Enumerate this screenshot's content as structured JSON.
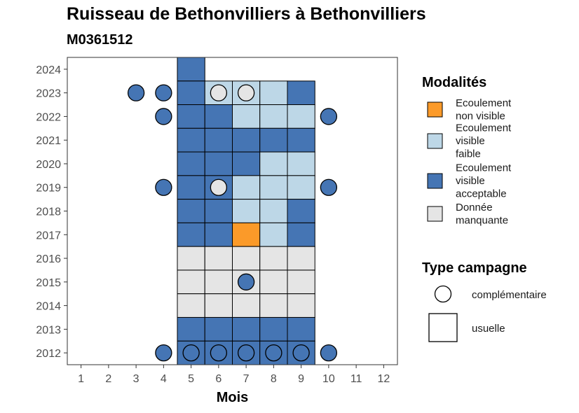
{
  "header": {
    "title": "Ruisseau de Bethonvilliers à Bethonvilliers",
    "subtitle": "M0361512"
  },
  "chart_data": {
    "type": "heatmap",
    "xlabel": "Mois",
    "ylabel": "",
    "x_ticks": [
      1,
      2,
      3,
      4,
      5,
      6,
      7,
      8,
      9,
      10,
      11,
      12
    ],
    "y_ticks": [
      2012,
      2013,
      2014,
      2015,
      2016,
      2017,
      2018,
      2019,
      2020,
      2021,
      2022,
      2023,
      2024
    ],
    "xlim": [
      0.5,
      12.5
    ],
    "ylim": [
      2011.5,
      2024.5
    ],
    "grid": false,
    "legend_position": "right",
    "colors": {
      "ecoulement_non_visible": "#fb9a29",
      "ecoulement_visible_faible": "#bdd7e7",
      "ecoulement_visible_acceptable": "#4575b4",
      "donnee_manquante": "#e5e5e5"
    },
    "legend_modalites": {
      "title": "Modalités",
      "items": [
        {
          "key": "ecoulement_non_visible",
          "lines": [
            "Ecoulement",
            "non visible"
          ]
        },
        {
          "key": "ecoulement_visible_faible",
          "lines": [
            "Ecoulement",
            "visible",
            "faible"
          ]
        },
        {
          "key": "ecoulement_visible_acceptable",
          "lines": [
            "Ecoulement",
            "visible",
            "acceptable"
          ]
        },
        {
          "key": "donnee_manquante",
          "lines": [
            "Donnée",
            "manquante"
          ]
        }
      ]
    },
    "legend_campagne": {
      "title": "Type campagne",
      "items": [
        {
          "shape": "circle",
          "label": "complémentaire"
        },
        {
          "shape": "square",
          "label": "usuelle"
        }
      ]
    },
    "usuelle_cells": [
      {
        "year": 2024,
        "month": 5,
        "value": "ecoulement_visible_acceptable"
      },
      {
        "year": 2023,
        "month": 5,
        "value": "ecoulement_visible_acceptable"
      },
      {
        "year": 2023,
        "month": 6,
        "value": "ecoulement_visible_faible"
      },
      {
        "year": 2023,
        "month": 7,
        "value": "ecoulement_visible_faible"
      },
      {
        "year": 2023,
        "month": 8,
        "value": "ecoulement_visible_faible"
      },
      {
        "year": 2023,
        "month": 9,
        "value": "ecoulement_visible_acceptable"
      },
      {
        "year": 2022,
        "month": 5,
        "value": "ecoulement_visible_acceptable"
      },
      {
        "year": 2022,
        "month": 6,
        "value": "ecoulement_visible_acceptable"
      },
      {
        "year": 2022,
        "month": 7,
        "value": "ecoulement_visible_faible"
      },
      {
        "year": 2022,
        "month": 8,
        "value": "ecoulement_visible_faible"
      },
      {
        "year": 2022,
        "month": 9,
        "value": "ecoulement_visible_faible"
      },
      {
        "year": 2021,
        "month": 5,
        "value": "ecoulement_visible_acceptable"
      },
      {
        "year": 2021,
        "month": 6,
        "value": "ecoulement_visible_acceptable"
      },
      {
        "year": 2021,
        "month": 7,
        "value": "ecoulement_visible_acceptable"
      },
      {
        "year": 2021,
        "month": 8,
        "value": "ecoulement_visible_acceptable"
      },
      {
        "year": 2021,
        "month": 9,
        "value": "ecoulement_visible_acceptable"
      },
      {
        "year": 2020,
        "month": 5,
        "value": "ecoulement_visible_acceptable"
      },
      {
        "year": 2020,
        "month": 6,
        "value": "ecoulement_visible_acceptable"
      },
      {
        "year": 2020,
        "month": 7,
        "value": "ecoulement_visible_acceptable"
      },
      {
        "year": 2020,
        "month": 8,
        "value": "ecoulement_visible_faible"
      },
      {
        "year": 2020,
        "month": 9,
        "value": "ecoulement_visible_faible"
      },
      {
        "year": 2019,
        "month": 5,
        "value": "ecoulement_visible_acceptable"
      },
      {
        "year": 2019,
        "month": 6,
        "value": "ecoulement_visible_acceptable"
      },
      {
        "year": 2019,
        "month": 7,
        "value": "ecoulement_visible_faible"
      },
      {
        "year": 2019,
        "month": 8,
        "value": "ecoulement_visible_faible"
      },
      {
        "year": 2019,
        "month": 9,
        "value": "ecoulement_visible_faible"
      },
      {
        "year": 2018,
        "month": 5,
        "value": "ecoulement_visible_acceptable"
      },
      {
        "year": 2018,
        "month": 6,
        "value": "ecoulement_visible_acceptable"
      },
      {
        "year": 2018,
        "month": 7,
        "value": "ecoulement_visible_faible"
      },
      {
        "year": 2018,
        "month": 8,
        "value": "ecoulement_visible_faible"
      },
      {
        "year": 2018,
        "month": 9,
        "value": "ecoulement_visible_acceptable"
      },
      {
        "year": 2017,
        "month": 5,
        "value": "ecoulement_visible_acceptable"
      },
      {
        "year": 2017,
        "month": 6,
        "value": "ecoulement_visible_acceptable"
      },
      {
        "year": 2017,
        "month": 7,
        "value": "ecoulement_non_visible"
      },
      {
        "year": 2017,
        "month": 8,
        "value": "ecoulement_visible_faible"
      },
      {
        "year": 2017,
        "month": 9,
        "value": "ecoulement_visible_acceptable"
      },
      {
        "year": 2016,
        "month": 5,
        "value": "donnee_manquante"
      },
      {
        "year": 2016,
        "month": 6,
        "value": "donnee_manquante"
      },
      {
        "year": 2016,
        "month": 7,
        "value": "donnee_manquante"
      },
      {
        "year": 2016,
        "month": 8,
        "value": "donnee_manquante"
      },
      {
        "year": 2016,
        "month": 9,
        "value": "donnee_manquante"
      },
      {
        "year": 2015,
        "month": 5,
        "value": "donnee_manquante"
      },
      {
        "year": 2015,
        "month": 6,
        "value": "donnee_manquante"
      },
      {
        "year": 2015,
        "month": 7,
        "value": "donnee_manquante"
      },
      {
        "year": 2015,
        "month": 8,
        "value": "donnee_manquante"
      },
      {
        "year": 2015,
        "month": 9,
        "value": "donnee_manquante"
      },
      {
        "year": 2014,
        "month": 5,
        "value": "donnee_manquante"
      },
      {
        "year": 2014,
        "month": 6,
        "value": "donnee_manquante"
      },
      {
        "year": 2014,
        "month": 7,
        "value": "donnee_manquante"
      },
      {
        "year": 2014,
        "month": 8,
        "value": "donnee_manquante"
      },
      {
        "year": 2014,
        "month": 9,
        "value": "donnee_manquante"
      },
      {
        "year": 2013,
        "month": 5,
        "value": "ecoulement_visible_acceptable"
      },
      {
        "year": 2013,
        "month": 6,
        "value": "ecoulement_visible_acceptable"
      },
      {
        "year": 2013,
        "month": 7,
        "value": "ecoulement_visible_acceptable"
      },
      {
        "year": 2013,
        "month": 8,
        "value": "ecoulement_visible_acceptable"
      },
      {
        "year": 2013,
        "month": 9,
        "value": "ecoulement_visible_acceptable"
      },
      {
        "year": 2012,
        "month": 5,
        "value": "ecoulement_visible_acceptable"
      },
      {
        "year": 2012,
        "month": 6,
        "value": "ecoulement_visible_acceptable"
      },
      {
        "year": 2012,
        "month": 7,
        "value": "ecoulement_visible_acceptable"
      },
      {
        "year": 2012,
        "month": 8,
        "value": "ecoulement_visible_acceptable"
      },
      {
        "year": 2012,
        "month": 9,
        "value": "ecoulement_visible_acceptable"
      }
    ],
    "complementaire_points": [
      {
        "year": 2023,
        "month": 3,
        "value": "ecoulement_visible_acceptable"
      },
      {
        "year": 2023,
        "month": 4,
        "value": "ecoulement_visible_acceptable"
      },
      {
        "year": 2023,
        "month": 6,
        "value": "donnee_manquante"
      },
      {
        "year": 2023,
        "month": 7,
        "value": "donnee_manquante"
      },
      {
        "year": 2022,
        "month": 4,
        "value": "ecoulement_visible_acceptable"
      },
      {
        "year": 2022,
        "month": 10,
        "value": "ecoulement_visible_acceptable"
      },
      {
        "year": 2019,
        "month": 4,
        "value": "ecoulement_visible_acceptable"
      },
      {
        "year": 2019,
        "month": 6,
        "value": "donnee_manquante"
      },
      {
        "year": 2019,
        "month": 10,
        "value": "ecoulement_visible_acceptable"
      },
      {
        "year": 2015,
        "month": 7,
        "value": "ecoulement_visible_acceptable"
      },
      {
        "year": 2012,
        "month": 4,
        "value": "ecoulement_visible_acceptable"
      },
      {
        "year": 2012,
        "month": 5,
        "value": "ecoulement_visible_acceptable"
      },
      {
        "year": 2012,
        "month": 6,
        "value": "ecoulement_visible_acceptable"
      },
      {
        "year": 2012,
        "month": 7,
        "value": "ecoulement_visible_acceptable"
      },
      {
        "year": 2012,
        "month": 8,
        "value": "ecoulement_visible_acceptable"
      },
      {
        "year": 2012,
        "month": 9,
        "value": "ecoulement_visible_acceptable"
      },
      {
        "year": 2012,
        "month": 10,
        "value": "ecoulement_visible_acceptable"
      }
    ]
  }
}
